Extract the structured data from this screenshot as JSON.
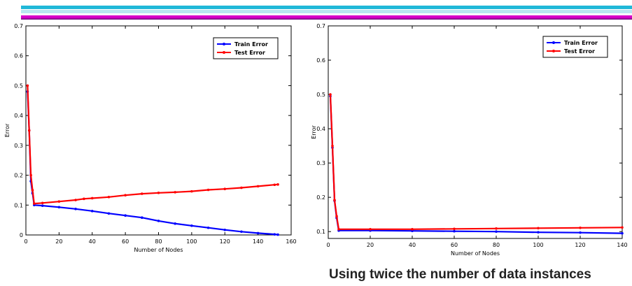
{
  "colors": {
    "bar_cyan": "#20b8d8",
    "bar_light": "#b8e8f0",
    "bar_magenta": "#d800c8",
    "bar_purple": "#601070",
    "train": "#0000ff",
    "test": "#ff0000"
  },
  "caption": "Using twice the number of data instances",
  "chart_data": [
    {
      "type": "line",
      "xlabel": "Number of Nodes",
      "ylabel": "Error",
      "xlim": [
        0,
        160
      ],
      "ylim": [
        0,
        0.7
      ],
      "xticks": [
        "0",
        "20",
        "40",
        "60",
        "80",
        "100",
        "120",
        "140",
        "160"
      ],
      "yticks": [
        "0",
        "0.1",
        "0.2",
        "0.3",
        "0.4",
        "0.5",
        "0.6",
        "0.7"
      ],
      "legend_position": "top-right",
      "series": [
        {
          "name": "Train Error",
          "color": "#0000ff",
          "points": [
            [
              1,
              0.48
            ],
            [
              2,
              0.35
            ],
            [
              3,
              0.18
            ],
            [
              4,
              0.14
            ],
            [
              5,
              0.1
            ],
            [
              10,
              0.098
            ],
            [
              20,
              0.093
            ],
            [
              30,
              0.087
            ],
            [
              40,
              0.08
            ],
            [
              50,
              0.072
            ],
            [
              60,
              0.065
            ],
            [
              70,
              0.058
            ],
            [
              80,
              0.047
            ],
            [
              90,
              0.038
            ],
            [
              100,
              0.031
            ],
            [
              110,
              0.024
            ],
            [
              120,
              0.017
            ],
            [
              130,
              0.011
            ],
            [
              140,
              0.006
            ],
            [
              150,
              0.002
            ],
            [
              152,
              0.001
            ]
          ]
        },
        {
          "name": "Test Error",
          "color": "#ff0000",
          "points": [
            [
              1,
              0.5
            ],
            [
              2,
              0.35
            ],
            [
              3,
              0.2
            ],
            [
              4,
              0.15
            ],
            [
              5,
              0.105
            ],
            [
              10,
              0.107
            ],
            [
              20,
              0.112
            ],
            [
              30,
              0.117
            ],
            [
              35,
              0.121
            ],
            [
              40,
              0.123
            ],
            [
              50,
              0.127
            ],
            [
              60,
              0.133
            ],
            [
              70,
              0.138
            ],
            [
              80,
              0.141
            ],
            [
              90,
              0.143
            ],
            [
              100,
              0.146
            ],
            [
              110,
              0.151
            ],
            [
              120,
              0.154
            ],
            [
              130,
              0.158
            ],
            [
              140,
              0.163
            ],
            [
              150,
              0.168
            ],
            [
              152,
              0.169
            ]
          ]
        }
      ]
    },
    {
      "type": "line",
      "xlabel": "Number of Nodes",
      "ylabel": "Error",
      "xlim": [
        0,
        140
      ],
      "ylim": [
        0.08,
        0.7
      ],
      "xticks": [
        "0",
        "20",
        "40",
        "60",
        "80",
        "100",
        "120",
        "140"
      ],
      "yticks": [
        "0.1",
        "0.2",
        "0.3",
        "0.4",
        "0.5",
        "0.6",
        "0.7"
      ],
      "legend_position": "top-right",
      "series": [
        {
          "name": "Train Error",
          "color": "#0000ff",
          "points": [
            [
              1,
              0.495
            ],
            [
              2,
              0.345
            ],
            [
              3,
              0.19
            ],
            [
              4,
              0.14
            ],
            [
              5,
              0.103
            ],
            [
              20,
              0.103
            ],
            [
              40,
              0.102
            ],
            [
              60,
              0.101
            ],
            [
              80,
              0.1
            ],
            [
              100,
              0.098
            ],
            [
              120,
              0.097
            ],
            [
              140,
              0.095
            ]
          ]
        },
        {
          "name": "Test Error",
          "color": "#ff0000",
          "points": [
            [
              1,
              0.5
            ],
            [
              2,
              0.35
            ],
            [
              3,
              0.192
            ],
            [
              4,
              0.145
            ],
            [
              5,
              0.107
            ],
            [
              20,
              0.107
            ],
            [
              40,
              0.107
            ],
            [
              60,
              0.108
            ],
            [
              80,
              0.109
            ],
            [
              100,
              0.11
            ],
            [
              120,
              0.111
            ],
            [
              140,
              0.112
            ]
          ]
        }
      ]
    }
  ]
}
